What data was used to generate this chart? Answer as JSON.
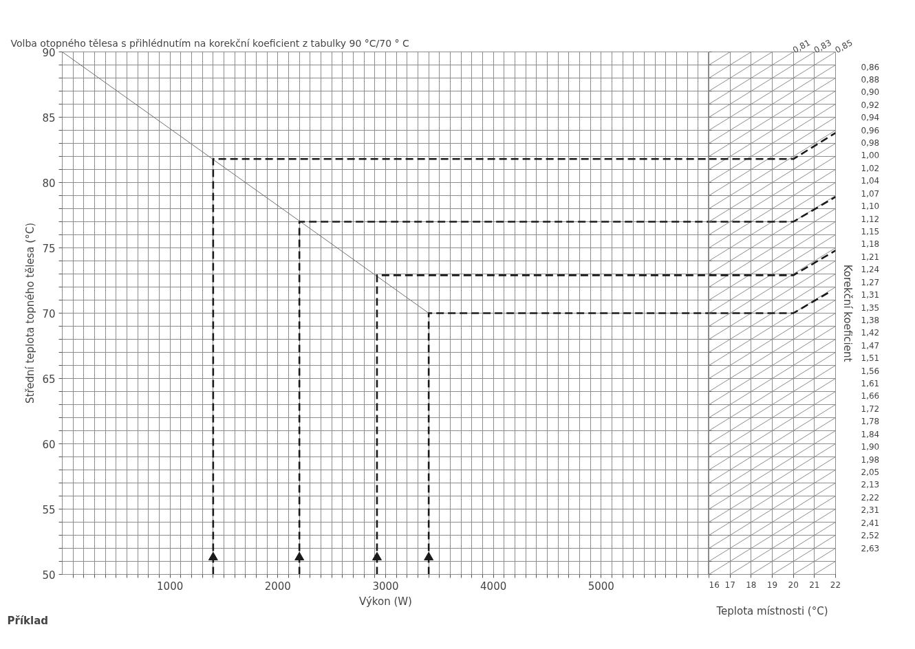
{
  "chart_data": [
    {
      "type": "line",
      "title": "Volba otopného tělesa s přihlédnutím na korekční koeficient z tabulky 90 °C/70 ° C",
      "xlabel": "Výkon (W)",
      "ylabel": "Střední teplota topného tělesa (°C)",
      "annotations": [
        "Příklad"
      ],
      "grid": true,
      "xlim": [
        0,
        6000
      ],
      "ylim": [
        50,
        90
      ],
      "xticks": [
        {
          "value": 100,
          "label": null
        },
        {
          "value": 200,
          "label": null
        },
        {
          "value": 300,
          "label": null
        },
        {
          "value": 400,
          "label": null
        },
        {
          "value": 500,
          "label": null
        },
        {
          "value": 600,
          "label": null
        },
        {
          "value": 700,
          "label": null
        },
        {
          "value": 800,
          "label": null
        },
        {
          "value": 900,
          "label": null
        },
        1000,
        {
          "value": 1100,
          "label": null
        },
        {
          "value": 1200,
          "label": null
        },
        {
          "value": 1300,
          "label": null
        },
        {
          "value": 1400,
          "label": null
        },
        {
          "value": 1500,
          "label": null
        },
        {
          "value": 1600,
          "label": null
        },
        {
          "value": 1700,
          "label": null
        },
        {
          "value": 1800,
          "label": null
        },
        {
          "value": 1900,
          "label": null
        },
        2000,
        {
          "value": 2100,
          "label": null
        },
        {
          "value": 2200,
          "label": null
        },
        {
          "value": 2300,
          "label": null
        },
        {
          "value": 2400,
          "label": null
        },
        {
          "value": 2500,
          "label": null
        },
        {
          "value": 2600,
          "label": null
        },
        {
          "value": 2700,
          "label": null
        },
        {
          "value": 2800,
          "label": null
        },
        {
          "value": 2900,
          "label": null
        },
        3000,
        {
          "value": 3100,
          "label": null
        },
        {
          "value": 3200,
          "label": null
        },
        {
          "value": 3300,
          "label": null
        },
        {
          "value": 3400,
          "label": null
        },
        {
          "value": 3500,
          "label": null
        },
        {
          "value": 3600,
          "label": null
        },
        {
          "value": 3700,
          "label": null
        },
        {
          "value": 3800,
          "label": null
        },
        {
          "value": 3900,
          "label": null
        },
        4000,
        {
          "value": 4100,
          "label": null
        },
        {
          "value": 4200,
          "label": null
        },
        {
          "value": 4300,
          "label": null
        },
        {
          "value": 4400,
          "label": null
        },
        {
          "value": 4500,
          "label": null
        },
        {
          "value": 4600,
          "label": null
        },
        {
          "value": 4700,
          "label": null
        },
        {
          "value": 4800,
          "label": null
        },
        {
          "value": 4900,
          "label": null
        },
        5000,
        {
          "value": 5100,
          "label": null
        },
        {
          "value": 5200,
          "label": null
        },
        {
          "value": 5300,
          "label": null
        },
        {
          "value": 5400,
          "label": null
        },
        {
          "value": 5500,
          "label": null
        },
        {
          "value": 5600,
          "label": null
        },
        {
          "value": 5700,
          "label": null
        },
        {
          "value": 5800,
          "label": null
        },
        {
          "value": 5900,
          "label": null
        }
      ],
      "yticks": [
        50,
        {
          "value": 51,
          "label": null
        },
        {
          "value": 52,
          "label": null
        },
        {
          "value": 53,
          "label": null
        },
        {
          "value": 54,
          "label": null
        },
        55,
        {
          "value": 56,
          "label": null
        },
        {
          "value": 57,
          "label": null
        },
        {
          "value": 58,
          "label": null
        },
        {
          "value": 59,
          "label": null
        },
        60,
        {
          "value": 61,
          "label": null
        },
        {
          "value": 62,
          "label": null
        },
        {
          "value": 63,
          "label": null
        },
        {
          "value": 64,
          "label": null
        },
        65,
        {
          "value": 66,
          "label": null
        },
        {
          "value": 67,
          "label": null
        },
        {
          "value": 68,
          "label": null
        },
        {
          "value": 69,
          "label": null
        },
        70,
        {
          "value": 71,
          "label": null
        },
        {
          "value": 72,
          "label": null
        },
        {
          "value": 73,
          "label": null
        },
        {
          "value": 74,
          "label": null
        },
        75,
        {
          "value": 76,
          "label": null
        },
        {
          "value": 77,
          "label": null
        },
        {
          "value": 78,
          "label": null
        },
        {
          "value": 79,
          "label": null
        },
        80,
        {
          "value": 81,
          "label": null
        },
        {
          "value": 82,
          "label": null
        },
        {
          "value": 83,
          "label": null
        },
        {
          "value": 84,
          "label": null
        },
        85,
        {
          "value": 86,
          "label": null
        },
        {
          "value": 87,
          "label": null
        },
        {
          "value": 88,
          "label": null
        },
        {
          "value": 89,
          "label": null
        },
        90
      ],
      "series": [
        {
          "color": "#707070",
          "line_style": "solid",
          "x": [
            0,
            3400
          ],
          "values": [
            90,
            70
          ]
        },
        {
          "color": "#1a1a1a",
          "line_style": "dashed",
          "x": [
            1400,
            1400,
            6000
          ],
          "values": [
            50,
            81.8,
            81.8
          ]
        },
        {
          "color": "#1a1a1a",
          "line_style": "dashed",
          "x": [
            2200,
            2200,
            6000
          ],
          "values": [
            50,
            77,
            77
          ]
        },
        {
          "color": "#1a1a1a",
          "line_style": "dashed",
          "x": [
            2920,
            2920,
            6000
          ],
          "values": [
            50,
            72.9,
            72.9
          ]
        },
        {
          "color": "#1a1a1a",
          "line_style": "dashed",
          "x": [
            3400,
            3400,
            6000
          ],
          "values": [
            50,
            70,
            70
          ]
        },
        {
          "type": "scatter",
          "color": "#1a1a1a",
          "marker": "triangle",
          "x": [
            1400,
            2200,
            2920,
            3400
          ],
          "values": [
            51.3,
            51.3,
            51.3,
            51.3
          ]
        }
      ]
    },
    {
      "type": "line",
      "xlabel": "Teplota místnosti (°C)",
      "y2label": "Korekční koeficient",
      "grid": true,
      "tick_labels": "x",
      "xlim": [
        16,
        22
      ],
      "ylim": [
        50,
        90
      ],
      "xticks": [
        16,
        17,
        18,
        19,
        20,
        21,
        22
      ],
      "yticks": [
        50,
        {
          "value": 51,
          "label": null
        },
        {
          "value": 52,
          "label": null
        },
        {
          "value": 53,
          "label": null
        },
        {
          "value": 54,
          "label": null
        },
        55,
        {
          "value": 56,
          "label": null
        },
        {
          "value": 57,
          "label": null
        },
        {
          "value": 58,
          "label": null
        },
        {
          "value": 59,
          "label": null
        },
        60,
        {
          "value": 61,
          "label": null
        },
        {
          "value": 62,
          "label": null
        },
        {
          "value": 63,
          "label": null
        },
        {
          "value": 64,
          "label": null
        },
        65,
        {
          "value": 66,
          "label": null
        },
        {
          "value": 67,
          "label": null
        },
        {
          "value": 68,
          "label": null
        },
        {
          "value": 69,
          "label": null
        },
        70,
        {
          "value": 71,
          "label": null
        },
        {
          "value": 72,
          "label": null
        },
        {
          "value": 73,
          "label": null
        },
        {
          "value": 74,
          "label": null
        },
        75,
        {
          "value": 76,
          "label": null
        },
        {
          "value": 77,
          "label": null
        },
        {
          "value": 78,
          "label": null
        },
        {
          "value": 79,
          "label": null
        },
        80,
        {
          "value": 81,
          "label": null
        },
        {
          "value": 82,
          "label": null
        },
        {
          "value": 83,
          "label": null
        },
        {
          "value": 84,
          "label": null
        },
        85,
        {
          "value": 86,
          "label": null
        },
        {
          "value": 87,
          "label": null
        },
        {
          "value": 88,
          "label": null
        },
        {
          "value": 89,
          "label": null
        },
        90
      ],
      "annotations": [
        {
          "text": "0,81",
          "x": 20,
          "y": 90
        },
        {
          "text": "0,83",
          "x": 21,
          "y": 90
        },
        {
          "text": "0,85",
          "x": 22,
          "y": 90
        },
        "0,86",
        "0,88",
        "0,90",
        "0,92",
        "0,94",
        "0,96",
        "0,98",
        "1,00",
        "1,02",
        "1,04",
        "1,07",
        "1,10",
        "1,12",
        "1,15",
        "1,18",
        "1,21",
        "1,24",
        "1,27",
        "1,31",
        "1,35",
        "1,38",
        "1,42",
        "1,47",
        "1,51",
        "1,56",
        "1,61",
        "1,66",
        "1,72",
        "1,78",
        "1,84",
        "1,90",
        "1,98",
        "2,05",
        "2,13",
        "2,22",
        "2,31",
        "2,41",
        "2,52",
        "2,63"
      ],
      "series": [
        {
          "color": "#8c8c8c",
          "x": [
            21,
            22
          ],
          "values": [
            50,
            51
          ]
        },
        {
          "color": "#8c8c8c",
          "x": [
            20,
            22
          ],
          "values": [
            50,
            52
          ]
        },
        {
          "color": "#8c8c8c",
          "x": [
            19,
            22
          ],
          "values": [
            50,
            53
          ]
        },
        {
          "color": "#8c8c8c",
          "x": [
            18,
            22
          ],
          "values": [
            50,
            54
          ]
        },
        {
          "color": "#8c8c8c",
          "x": [
            17,
            22
          ],
          "values": [
            50,
            55
          ]
        },
        {
          "color": "#8c8c8c",
          "x": [
            16,
            22
          ],
          "values": [
            50,
            56
          ]
        },
        {
          "color": "#8c8c8c",
          "x": [
            16,
            22
          ],
          "values": [
            51,
            57
          ]
        },
        {
          "color": "#8c8c8c",
          "x": [
            16,
            22
          ],
          "values": [
            52,
            58
          ]
        },
        {
          "color": "#8c8c8c",
          "x": [
            16,
            22
          ],
          "values": [
            53,
            59
          ]
        },
        {
          "color": "#8c8c8c",
          "x": [
            16,
            22
          ],
          "values": [
            54,
            60
          ]
        },
        {
          "color": "#8c8c8c",
          "x": [
            16,
            22
          ],
          "values": [
            55,
            61
          ]
        },
        {
          "color": "#8c8c8c",
          "x": [
            16,
            22
          ],
          "values": [
            56,
            62
          ]
        },
        {
          "color": "#8c8c8c",
          "x": [
            16,
            22
          ],
          "values": [
            57,
            63
          ]
        },
        {
          "color": "#8c8c8c",
          "x": [
            16,
            22
          ],
          "values": [
            58,
            64
          ]
        },
        {
          "color": "#8c8c8c",
          "x": [
            16,
            22
          ],
          "values": [
            59,
            65
          ]
        },
        {
          "color": "#8c8c8c",
          "x": [
            16,
            22
          ],
          "values": [
            60,
            66
          ]
        },
        {
          "color": "#8c8c8c",
          "x": [
            16,
            22
          ],
          "values": [
            61,
            67
          ]
        },
        {
          "color": "#8c8c8c",
          "x": [
            16,
            22
          ],
          "values": [
            62,
            68
          ]
        },
        {
          "color": "#8c8c8c",
          "x": [
            16,
            22
          ],
          "values": [
            63,
            69
          ]
        },
        {
          "color": "#8c8c8c",
          "x": [
            16,
            22
          ],
          "values": [
            64,
            70
          ]
        },
        {
          "color": "#8c8c8c",
          "x": [
            16,
            22
          ],
          "values": [
            65,
            71
          ]
        },
        {
          "color": "#8c8c8c",
          "x": [
            16,
            22
          ],
          "values": [
            66,
            72
          ]
        },
        {
          "color": "#8c8c8c",
          "x": [
            16,
            22
          ],
          "values": [
            67,
            73
          ]
        },
        {
          "color": "#8c8c8c",
          "x": [
            16,
            22
          ],
          "values": [
            68,
            74
          ]
        },
        {
          "color": "#8c8c8c",
          "x": [
            16,
            22
          ],
          "values": [
            69,
            75
          ]
        },
        {
          "color": "#8c8c8c",
          "x": [
            16,
            22
          ],
          "values": [
            70,
            76
          ]
        },
        {
          "color": "#8c8c8c",
          "x": [
            16,
            22
          ],
          "values": [
            71,
            77
          ]
        },
        {
          "color": "#8c8c8c",
          "x": [
            16,
            22
          ],
          "values": [
            72,
            78
          ]
        },
        {
          "color": "#8c8c8c",
          "x": [
            16,
            22
          ],
          "values": [
            73,
            79
          ]
        },
        {
          "color": "#8c8c8c",
          "x": [
            16,
            22
          ],
          "values": [
            74,
            80
          ]
        },
        {
          "color": "#8c8c8c",
          "x": [
            16,
            22
          ],
          "values": [
            75,
            81
          ]
        },
        {
          "color": "#8c8c8c",
          "x": [
            16,
            22
          ],
          "values": [
            76,
            82
          ]
        },
        {
          "color": "#8c8c8c",
          "x": [
            16,
            22
          ],
          "values": [
            77,
            83
          ]
        },
        {
          "color": "#8c8c8c",
          "x": [
            16,
            22
          ],
          "values": [
            78,
            84
          ]
        },
        {
          "color": "#8c8c8c",
          "x": [
            16,
            22
          ],
          "values": [
            79,
            85
          ]
        },
        {
          "color": "#8c8c8c",
          "x": [
            16,
            22
          ],
          "values": [
            80,
            86
          ]
        },
        {
          "color": "#8c8c8c",
          "x": [
            16,
            22
          ],
          "values": [
            81,
            87
          ]
        },
        {
          "color": "#8c8c8c",
          "x": [
            16,
            22
          ],
          "values": [
            82,
            88
          ]
        },
        {
          "color": "#8c8c8c",
          "x": [
            16,
            22
          ],
          "values": [
            83,
            89
          ]
        },
        {
          "color": "#8c8c8c",
          "x": [
            16,
            22
          ],
          "values": [
            84,
            90
          ]
        },
        {
          "color": "#8c8c8c",
          "x": [
            16,
            21
          ],
          "values": [
            85,
            90
          ]
        },
        {
          "color": "#8c8c8c",
          "x": [
            16,
            20
          ],
          "values": [
            86,
            90
          ]
        },
        {
          "color": "#8c8c8c",
          "x": [
            16,
            19
          ],
          "values": [
            87,
            90
          ]
        },
        {
          "color": "#8c8c8c",
          "x": [
            16,
            18
          ],
          "values": [
            88,
            90
          ]
        },
        {
          "color": "#8c8c8c",
          "x": [
            16,
            17
          ],
          "values": [
            89,
            90
          ]
        },
        {
          "color": "#1a1a1a",
          "line_style": "dashed",
          "x": [
            16,
            20,
            22
          ],
          "values": [
            81.8,
            81.8,
            83.8
          ]
        },
        {
          "color": "#1a1a1a",
          "line_style": "dashed",
          "x": [
            16,
            20,
            22
          ],
          "values": [
            77,
            77,
            78.9
          ]
        },
        {
          "color": "#1a1a1a",
          "line_style": "dashed",
          "x": [
            16,
            20,
            22
          ],
          "values": [
            72.9,
            72.9,
            74.8
          ]
        },
        {
          "color": "#1a1a1a",
          "line_style": "dashed",
          "x": [
            16,
            20,
            21.8
          ],
          "values": [
            70,
            70,
            71.7
          ]
        }
      ]
    }
  ]
}
